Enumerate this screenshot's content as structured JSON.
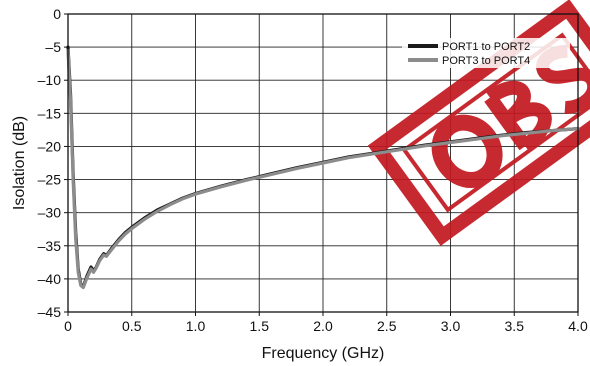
{
  "chart_data": {
    "type": "line",
    "title": "",
    "xlabel": "Frequency (GHz)",
    "ylabel": "Isolation (dB)",
    "xlim": [
      0,
      4.0
    ],
    "ylim": [
      -45,
      0
    ],
    "xticks": [
      "0",
      "0.5",
      "1.0",
      "1.5",
      "2.0",
      "2.5",
      "3.0",
      "3.5",
      "4.0"
    ],
    "yticks": [
      "0",
      "–5",
      "–10",
      "–15",
      "–20",
      "–25",
      "–30",
      "–35",
      "–40",
      "–45"
    ],
    "grid": true,
    "legend": "top-right",
    "series": [
      {
        "name": "PORT1 to PORT2",
        "color": "#1a1a1a",
        "x": [
          0.0,
          0.02,
          0.04,
          0.06,
          0.08,
          0.1,
          0.12,
          0.15,
          0.18,
          0.2,
          0.22,
          0.25,
          0.28,
          0.3,
          0.35,
          0.4,
          0.45,
          0.5,
          0.6,
          0.7,
          0.8,
          0.9,
          1.0,
          1.2,
          1.4,
          1.6,
          1.8,
          2.0,
          2.2,
          2.4,
          2.6,
          2.8,
          3.0,
          3.2,
          3.4,
          3.6,
          3.8,
          4.0
        ],
        "y": [
          -5.0,
          -12.0,
          -24.0,
          -33.0,
          -38.5,
          -40.8,
          -41.2,
          -39.5,
          -38.2,
          -38.8,
          -38.3,
          -37.0,
          -36.2,
          -36.5,
          -35.2,
          -34.0,
          -33.0,
          -32.2,
          -30.8,
          -29.6,
          -28.7,
          -27.8,
          -27.1,
          -26.0,
          -25.0,
          -24.1,
          -23.2,
          -22.4,
          -21.6,
          -21.0,
          -20.4,
          -19.8,
          -19.3,
          -18.8,
          -18.3,
          -17.9,
          -17.6,
          -17.3
        ]
      },
      {
        "name": "PORT3 to PORT4",
        "color": "#8c8c8c",
        "x": [
          0.0,
          0.02,
          0.04,
          0.06,
          0.08,
          0.1,
          0.12,
          0.15,
          0.18,
          0.2,
          0.22,
          0.25,
          0.28,
          0.3,
          0.35,
          0.4,
          0.45,
          0.5,
          0.6,
          0.7,
          0.8,
          0.9,
          1.0,
          1.2,
          1.4,
          1.6,
          1.8,
          2.0,
          2.2,
          2.4,
          2.6,
          2.8,
          3.0,
          3.2,
          3.4,
          3.6,
          3.8,
          4.0
        ],
        "y": [
          -5.5,
          -13.0,
          -25.0,
          -34.0,
          -39.0,
          -41.0,
          -41.3,
          -39.8,
          -38.5,
          -39.0,
          -38.4,
          -37.2,
          -36.4,
          -36.6,
          -35.4,
          -34.2,
          -33.2,
          -32.4,
          -31.0,
          -29.8,
          -28.8,
          -27.9,
          -27.2,
          -26.1,
          -25.1,
          -24.2,
          -23.3,
          -22.5,
          -21.7,
          -21.1,
          -20.5,
          -19.9,
          -19.4,
          -18.9,
          -18.4,
          -18.0,
          -17.6,
          -17.3
        ]
      }
    ]
  }
}
